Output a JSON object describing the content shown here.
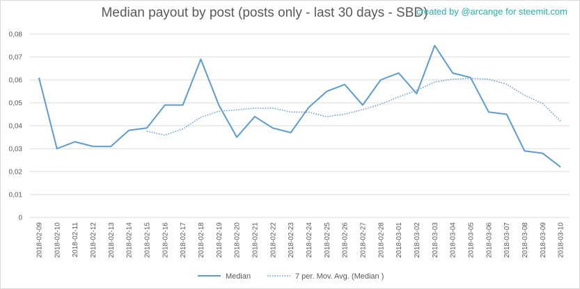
{
  "credit": "created by @arcange for steemit.com",
  "colors": {
    "median": "#5b9bd5",
    "grid": "#d9d9d9",
    "text": "#595959",
    "credit": "#22b2ad"
  },
  "chart_data": {
    "type": "line",
    "title": "Median payout by post (posts only - last 30 days - SBD)",
    "xlabel": "",
    "ylabel": "",
    "ylim": [
      0,
      0.08
    ],
    "yticks": [
      "0",
      "0,01",
      "0,02",
      "0,03",
      "0,04",
      "0,05",
      "0,06",
      "0,07",
      "0,08"
    ],
    "grid": true,
    "legend_position": "bottom",
    "categories": [
      "2018-02-09",
      "2018-02-10",
      "2018-02-11",
      "2018-02-12",
      "2018-02-13",
      "2018-02-14",
      "2018-02-15",
      "2018-02-16",
      "2018-02-17",
      "2018-02-18",
      "2018-02-19",
      "2018-02-20",
      "2018-02-21",
      "2018-02-22",
      "2018-02-23",
      "2018-02-24",
      "2018-02-25",
      "2018-02-26",
      "2018-02-27",
      "2018-02-28",
      "2018-03-01",
      "2018-03-02",
      "2018-03-03",
      "2018-03-04",
      "2018-03-05",
      "2018-03-06",
      "2018-03-07",
      "2018-03-08",
      "2018-03-09",
      "2018-03-10"
    ],
    "series": [
      {
        "name": "Median",
        "style": "solid",
        "values": [
          0.061,
          0.03,
          0.033,
          0.031,
          0.031,
          0.038,
          0.039,
          0.049,
          0.049,
          0.069,
          0.049,
          0.035,
          0.044,
          0.039,
          0.037,
          0.048,
          0.055,
          0.058,
          0.049,
          0.06,
          0.063,
          0.054,
          0.075,
          0.063,
          0.061,
          0.046,
          0.045,
          0.029,
          0.028,
          0.022
        ]
      },
      {
        "name": "7 per. Mov. Avg. (Median )",
        "style": "dotted",
        "values": [
          null,
          null,
          null,
          null,
          null,
          null,
          0.0376,
          0.0359,
          0.0386,
          0.0437,
          0.0463,
          0.0469,
          0.0477,
          0.0477,
          0.046,
          0.0459,
          0.0439,
          0.0451,
          0.047,
          0.0494,
          0.0526,
          0.0554,
          0.0591,
          0.0603,
          0.0607,
          0.0603,
          0.0581,
          0.0533,
          0.0497,
          0.042
        ]
      }
    ]
  }
}
